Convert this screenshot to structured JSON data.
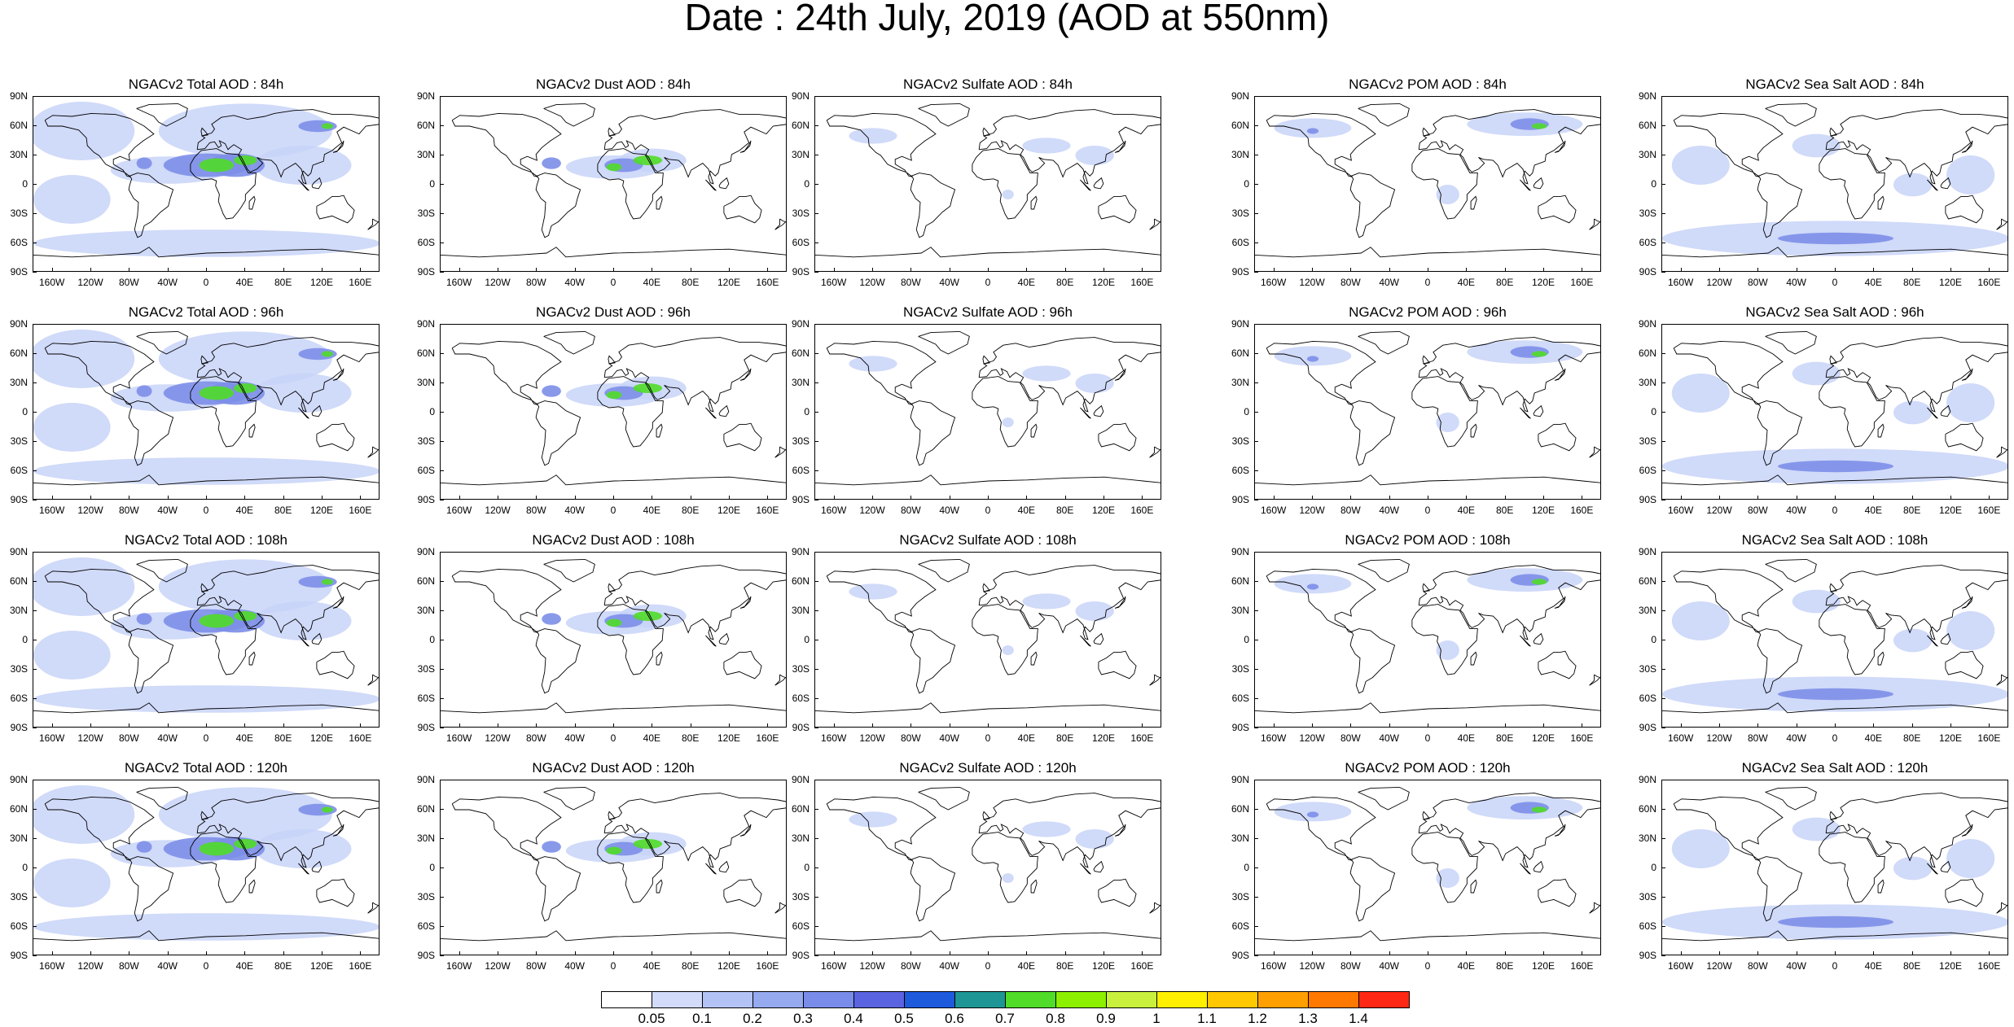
{
  "title": "Date : 24th July, 2019 (AOD at 550nm)",
  "lat_ticks": [
    "90N",
    "60N",
    "30N",
    "0",
    "30S",
    "60S",
    "90S"
  ],
  "lon_ticks": [
    "160W",
    "120W",
    "80W",
    "40W",
    "0",
    "40E",
    "80E",
    "120E",
    "160E"
  ],
  "rows": [
    {
      "titles": [
        "NGACv2 Total AOD : 84h",
        "NGACv2 Dust AOD : 84h",
        "NGACv2 Sulfate AOD : 84h",
        "NGACv2 POM AOD : 84h",
        "NGACv2 Sea Salt AOD : 84h"
      ]
    },
    {
      "titles": [
        "NGACv2 Total AOD : 96h",
        "NGACv2 Dust AOD : 96h",
        "NGACv2 Sulfate AOD : 96h",
        "NGACv2 POM AOD : 96h",
        "NGACv2 Sea Salt AOD : 96h"
      ]
    },
    {
      "titles": [
        "NGACv2 Total AOD : 108h",
        "NGACv2 Dust AOD : 108h",
        "NGACv2 Sulfate AOD : 108h",
        "NGACv2 POM AOD : 108h",
        "NGACv2 Sea Salt AOD : 108h"
      ]
    },
    {
      "titles": [
        "NGACv2 Total AOD : 120h",
        "NGACv2 Dust AOD : 120h",
        "NGACv2 Sulfate AOD : 120h",
        "NGACv2 POM AOD : 120h",
        "NGACv2 Sea Salt  AOD : 120h"
      ]
    }
  ],
  "colorbar": {
    "labels": [
      "0.05",
      "0.1",
      "0.2",
      "0.3",
      "0.4",
      "0.5",
      "0.6",
      "0.7",
      "0.8",
      "0.9",
      "1",
      "1.1",
      "1.2",
      "1.3",
      "1.4"
    ],
    "colors": [
      "#ffffff",
      "#d2dcfa",
      "#b4c3f5",
      "#96aaf0",
      "#7a8cea",
      "#5a64e0",
      "#1e5adc",
      "#1e9696",
      "#50dc28",
      "#8cf000",
      "#c8f03c",
      "#fff000",
      "#ffc800",
      "#ffa000",
      "#ff7800",
      "#ff2814"
    ]
  },
  "colors": {
    "land_outline": "#000000",
    "aerosol_light": "#c8d4f8",
    "aerosol_mid": "#7c8ee8",
    "aerosol_high": "#50dc28",
    "aerosol_peak": "#ff2814"
  }
}
